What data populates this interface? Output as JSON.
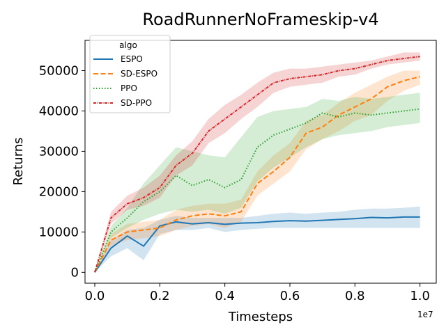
{
  "chart_data": {
    "type": "line",
    "title": "RoadRunnerNoFrameskip-v4",
    "xlabel": "Timesteps",
    "ylabel": "Returns",
    "x_offset_label": "1e7",
    "xlim": [
      -0.03,
      1.05
    ],
    "ylim": [
      -2700,
      57500
    ],
    "x_ticks": [
      0.0,
      0.2,
      0.4,
      0.6,
      0.8,
      1.0
    ],
    "x_tick_labels": [
      "0.0",
      "0.2",
      "0.4",
      "0.6",
      "0.8",
      "1.0"
    ],
    "y_ticks": [
      0,
      10000,
      20000,
      30000,
      40000,
      50000
    ],
    "y_tick_labels": [
      "0",
      "10000",
      "20000",
      "30000",
      "40000",
      "50000"
    ],
    "grid": false,
    "legend": {
      "title": "algo",
      "placement": "top-left"
    },
    "x": [
      0.0,
      0.05,
      0.1,
      0.15,
      0.2,
      0.25,
      0.3,
      0.35,
      0.4,
      0.45,
      0.5,
      0.55,
      0.6,
      0.65,
      0.7,
      0.75,
      0.8,
      0.85,
      0.9,
      0.95,
      1.0
    ],
    "series": [
      {
        "name": "ESPO",
        "color": "#1f77b4",
        "dash": "solid",
        "values": [
          0,
          6000,
          9000,
          6500,
          11500,
          12500,
          12000,
          12300,
          11900,
          12200,
          12300,
          12600,
          12800,
          12700,
          12900,
          13100,
          13300,
          13600,
          13500,
          13700,
          13700
        ],
        "lower": [
          0,
          4000,
          6000,
          3000,
          9500,
          10500,
          10500,
          11000,
          10000,
          10500,
          10800,
          11000,
          11000,
          11000,
          11000,
          11000,
          11000,
          11000,
          11000,
          11000,
          11000
        ],
        "upper": [
          0,
          8000,
          10500,
          11000,
          13000,
          14000,
          13500,
          13500,
          13500,
          13500,
          14000,
          14500,
          14800,
          14500,
          14800,
          15000,
          15500,
          15800,
          15800,
          16000,
          16300
        ]
      },
      {
        "name": "SD-ESPO",
        "color": "#ff7f0e",
        "dash": "7,3.5",
        "values": [
          0,
          8000,
          10000,
          10500,
          11000,
          13000,
          14000,
          14500,
          14000,
          15000,
          22000,
          25000,
          28500,
          34500,
          36000,
          39000,
          41000,
          43000,
          46000,
          47500,
          48500
        ],
        "lower": [
          0,
          6500,
          8000,
          8500,
          9000,
          10500,
          11500,
          12000,
          11000,
          12500,
          19000,
          22000,
          25000,
          30500,
          33000,
          35000,
          37500,
          39000,
          42500,
          45000,
          46500
        ],
        "upper": [
          0,
          9500,
          12000,
          12500,
          13000,
          15500,
          16500,
          17000,
          17000,
          18000,
          25000,
          29000,
          32000,
          37500,
          39000,
          42000,
          44500,
          46500,
          48500,
          50000,
          50000
        ]
      },
      {
        "name": "PPO",
        "color": "#2ca02c",
        "dash": "1.5,2.5",
        "values": [
          0,
          10000,
          13500,
          17500,
          20000,
          24000,
          21500,
          23000,
          21000,
          23000,
          31000,
          34000,
          35500,
          37000,
          39500,
          38500,
          39500,
          39000,
          39500,
          40000,
          40500
        ],
        "lower": [
          0,
          8500,
          11000,
          13000,
          14500,
          15500,
          15000,
          15500,
          14500,
          16000,
          22500,
          26000,
          28500,
          31000,
          33000,
          34000,
          34500,
          35000,
          36000,
          36500,
          37000
        ],
        "upper": [
          0,
          11500,
          16000,
          22000,
          26500,
          31000,
          30000,
          29000,
          28500,
          33500,
          38500,
          40000,
          40500,
          41000,
          43000,
          42500,
          43500,
          43000,
          43500,
          44000,
          44500
        ]
      },
      {
        "name": "SD-PPO",
        "color": "#d62728",
        "dash": "4,1.5,1,1.5",
        "values": [
          0,
          13500,
          17000,
          18500,
          21000,
          26500,
          29500,
          35000,
          38000,
          41000,
          44000,
          47000,
          48000,
          48500,
          49000,
          50000,
          50500,
          51500,
          52500,
          53000,
          53500
        ],
        "lower": [
          0,
          12000,
          15500,
          16500,
          18500,
          24000,
          26500,
          32000,
          34500,
          38000,
          41000,
          44500,
          46000,
          46500,
          47000,
          48500,
          49000,
          50500,
          51500,
          52000,
          52500
        ],
        "upper": [
          0,
          15000,
          19000,
          21000,
          24000,
          29000,
          32500,
          38000,
          41500,
          44000,
          47000,
          49500,
          50500,
          50500,
          51000,
          51500,
          52000,
          52500,
          53500,
          54500,
          54500
        ]
      }
    ]
  }
}
